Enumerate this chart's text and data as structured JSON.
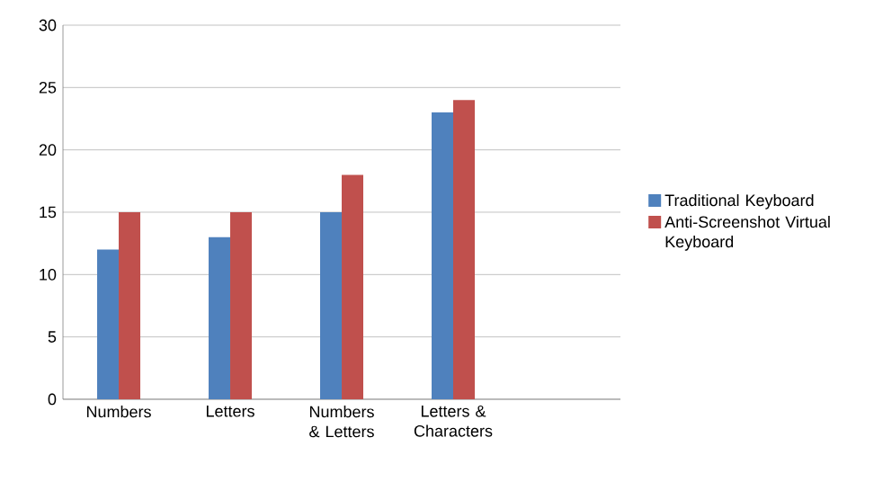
{
  "chart_data": {
    "type": "bar",
    "categories": [
      "Numbers",
      "Letters",
      "Numbers & Letters",
      "Letters & Characters",
      null
    ],
    "series": [
      {
        "name": "Traditional Keyboard",
        "color": "#4f81bd",
        "values": [
          12,
          13,
          15,
          23,
          null
        ]
      },
      {
        "name": "Anti-Screenshot Virtual Keyboard",
        "color": "#c0504d",
        "values": [
          15,
          15,
          18,
          24,
          null
        ]
      }
    ],
    "ylim": [
      0,
      30
    ],
    "yticks": [
      0,
      5,
      10,
      15,
      20,
      25,
      30
    ],
    "grid": "y",
    "legend": "right"
  }
}
